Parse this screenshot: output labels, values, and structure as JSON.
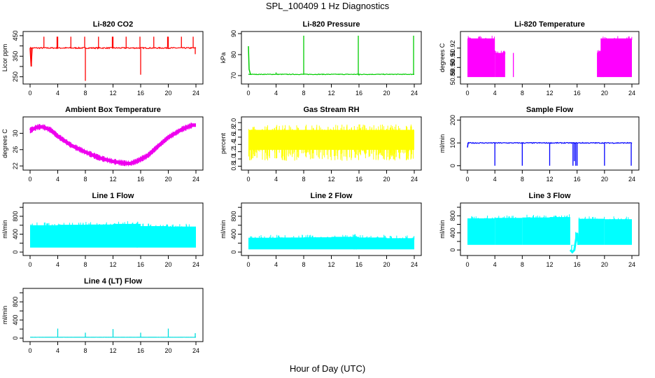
{
  "figure": {
    "title": "SPL_100409  1 Hz Diagnostics",
    "xlabel": "Hour of Day (UTC)"
  },
  "chart_data": [
    {
      "id": "co2",
      "type": "line",
      "title": "Li-820 CO2",
      "ylabel": "Licor ppm",
      "color": "#ff0000",
      "xlim": [
        0,
        24
      ],
      "x_ticks": [
        0,
        4,
        8,
        12,
        16,
        20,
        24
      ],
      "ylim": [
        225,
        460
      ],
      "y_ticks": [
        250,
        300,
        350,
        400,
        450
      ],
      "y_tick_labels": [
        "250",
        "",
        "350",
        "",
        "450"
      ],
      "series": [
        {
          "baseline": 390,
          "noise": 6,
          "points": [
            [
              0,
              390
            ],
            [
              0.15,
              300
            ],
            [
              0.3,
              390
            ],
            [
              24,
              390
            ]
          ],
          "spikes": [
            [
              0.2,
              300
            ],
            [
              2,
              445
            ],
            [
              3.9,
              445
            ],
            [
              4,
              445
            ],
            [
              5.9,
              445
            ],
            [
              7.9,
              445
            ],
            [
              8,
              230
            ],
            [
              9.9,
              445
            ],
            [
              11.9,
              445
            ],
            [
              12,
              445
            ],
            [
              13.9,
              445
            ],
            [
              15.9,
              445
            ],
            [
              16,
              260
            ],
            [
              17.9,
              445
            ],
            [
              19.9,
              445
            ],
            [
              20,
              445
            ],
            [
              21.9,
              445
            ],
            [
              23.6,
              445
            ],
            [
              23.9,
              360
            ]
          ]
        }
      ]
    },
    {
      "id": "pressure",
      "type": "line",
      "title": "Li-820 Pressure",
      "ylabel": "kPa",
      "color": "#00cc00",
      "xlim": [
        0,
        24
      ],
      "x_ticks": [
        0,
        4,
        8,
        12,
        16,
        20,
        24
      ],
      "ylim": [
        67,
        90
      ],
      "y_ticks": [
        70,
        80,
        90
      ],
      "y_tick_labels": [
        "70",
        "80",
        "90"
      ],
      "series": [
        {
          "baseline": 70.6,
          "noise": 0.3,
          "points": [
            [
              0,
              84
            ],
            [
              0.1,
              73
            ],
            [
              0.3,
              70.6
            ],
            [
              24,
              70.6
            ]
          ],
          "spikes": [
            [
              4,
              71.5
            ],
            [
              8,
              89
            ],
            [
              15.9,
              89
            ],
            [
              16,
              70
            ],
            [
              23.9,
              89
            ]
          ]
        }
      ]
    },
    {
      "id": "licor_temp",
      "type": "area",
      "title": "Li-820 Temperature",
      "ylabel": "degrees C",
      "color": "#ff00ff",
      "xlim": [
        0,
        24
      ],
      "x_ticks": [
        0,
        4,
        8,
        12,
        16,
        20,
        24
      ],
      "ylim": [
        50.885,
        50.935
      ],
      "y_ticks": [
        50.89,
        50.9,
        50.91,
        50.92
      ],
      "y_tick_labels": [
        "50.89",
        "50.90",
        "50.91",
        "50.92"
      ],
      "series": [
        {
          "bands": [
            [
              0,
              4,
              50.89,
              50.93
            ],
            [
              4,
              5.5,
              50.89,
              50.915
            ],
            [
              18.9,
              19.5,
              50.89,
              50.915
            ],
            [
              19.5,
              24,
              50.89,
              50.93
            ]
          ],
          "points": [
            [
              0,
              50.89
            ],
            [
              24,
              50.89
            ]
          ],
          "spikes": [
            [
              6.7,
              50.915
            ],
            [
              19.5,
              50.93
            ],
            [
              19.8,
              50.93
            ]
          ]
        }
      ]
    },
    {
      "id": "ambient_box",
      "type": "line",
      "title": "Ambient Box Temperature",
      "ylabel": "degrees C",
      "color": "#ee00ee",
      "xlim": [
        0,
        24
      ],
      "x_ticks": [
        0,
        4,
        8,
        12,
        16,
        20,
        24
      ],
      "ylim": [
        21.5,
        33.5
      ],
      "y_ticks": [
        22,
        26,
        30
      ],
      "y_tick_labels": [
        "22",
        "26",
        "30"
      ],
      "series": [
        {
          "thickness": 0.7,
          "points": [
            [
              0,
              30.7
            ],
            [
              1,
              31.5
            ],
            [
              1.8,
              31.6
            ],
            [
              3,
              30.8
            ],
            [
              4,
              29.3
            ],
            [
              6,
              27
            ],
            [
              8,
              25.4
            ],
            [
              10,
              24
            ],
            [
              12,
              23.1
            ],
            [
              13.5,
              22.7
            ],
            [
              14.5,
              22.6
            ],
            [
              15.5,
              23.2
            ],
            [
              17,
              24.5
            ],
            [
              18.5,
              26.8
            ],
            [
              20,
              29
            ],
            [
              22,
              31
            ],
            [
              23.5,
              32
            ],
            [
              24,
              32
            ]
          ]
        }
      ]
    },
    {
      "id": "gas_rh",
      "type": "area",
      "title": "Gas Stream RH",
      "ylabel": "percent",
      "color": "#ffff00",
      "xlim": [
        0,
        24
      ],
      "x_ticks": [
        0,
        4,
        8,
        12,
        16,
        20,
        24
      ],
      "ylim": [
        0.75,
        2.1
      ],
      "y_ticks": [
        0.8,
        1.0,
        1.2,
        1.4,
        1.6,
        1.8,
        2.0
      ],
      "y_tick_labels": [
        "0.8",
        "1.0",
        "1.2",
        "1.4",
        "1.6",
        "1.8",
        "2.0"
      ],
      "series": [
        {
          "bands": [
            [
              0,
              24,
              1.25,
              1.8
            ]
          ],
          "points": [
            [
              0,
              1.5
            ],
            [
              24,
              1.5
            ]
          ],
          "noise_band": [
            0.95,
            1.95
          ]
        }
      ]
    },
    {
      "id": "sample_flow",
      "type": "line",
      "title": "Sample Flow",
      "ylabel": "ml/min",
      "color": "#0000ff",
      "xlim": [
        0,
        24
      ],
      "x_ticks": [
        0,
        4,
        8,
        12,
        16,
        20,
        24
      ],
      "ylim": [
        -10,
        205
      ],
      "y_ticks": [
        0,
        100,
        200
      ],
      "y_tick_labels": [
        "0",
        "100",
        "200"
      ],
      "series": [
        {
          "baseline": 100,
          "noise": 4,
          "points": [
            [
              0,
              80
            ],
            [
              0.1,
              100
            ],
            [
              24,
              100
            ]
          ],
          "spikes": [
            [
              4,
              0
            ],
            [
              8,
              0
            ],
            [
              12,
              0
            ],
            [
              15.4,
              0
            ],
            [
              15.6,
              20
            ],
            [
              15.8,
              0
            ],
            [
              16,
              0
            ],
            [
              20,
              0
            ],
            [
              23.9,
              0
            ]
          ]
        }
      ]
    },
    {
      "id": "line1_flow",
      "type": "area",
      "title": "Line 1 Flow",
      "ylabel": "ml/min",
      "color": "#00ffff",
      "xlim": [
        0,
        24
      ],
      "x_ticks": [
        0,
        4,
        8,
        12,
        16,
        20,
        24
      ],
      "ylim": [
        -30,
        1050
      ],
      "y_ticks": [
        0,
        200,
        400,
        600,
        800,
        1000
      ],
      "y_tick_labels": [
        "0",
        "",
        "400",
        "",
        "800",
        ""
      ],
      "series": [
        {
          "bands": [
            [
              0,
              4,
              100,
              600
            ],
            [
              4,
              8,
              100,
              610
            ],
            [
              8,
              12,
              100,
              615
            ],
            [
              12,
              16,
              100,
              630
            ],
            [
              16,
              20,
              100,
              580
            ],
            [
              20,
              24,
              100,
              570
            ]
          ],
          "points": [
            [
              0,
              100
            ],
            [
              24,
              100
            ]
          ],
          "spikes": [
            [
              15.5,
              650
            ]
          ]
        }
      ]
    },
    {
      "id": "line2_flow",
      "type": "area",
      "title": "Line 2 Flow",
      "ylabel": "ml/min",
      "color": "#00ffff",
      "xlim": [
        0,
        24
      ],
      "x_ticks": [
        0,
        4,
        8,
        12,
        16,
        20,
        24
      ],
      "ylim": [
        -30,
        1050
      ],
      "y_ticks": [
        0,
        200,
        400,
        600,
        800,
        1000
      ],
      "y_tick_labels": [
        "0",
        "",
        "400",
        "",
        "800",
        ""
      ],
      "series": [
        {
          "bands": [
            [
              0,
              4,
              60,
              320
            ],
            [
              4,
              8,
              60,
              325
            ],
            [
              8,
              12,
              60,
              330
            ],
            [
              12,
              16,
              60,
              340
            ],
            [
              16,
              20,
              60,
              325
            ],
            [
              20,
              24,
              60,
              310
            ]
          ],
          "points": [
            [
              0,
              60
            ],
            [
              24,
              60
            ]
          ],
          "spikes": [
            [
              15.3,
              370
            ],
            [
              15.6,
              360
            ]
          ]
        }
      ]
    },
    {
      "id": "line3_flow",
      "type": "area",
      "title": "Line 3 Flow",
      "ylabel": "ml/min",
      "color": "#00ffff",
      "xlim": [
        0,
        24
      ],
      "x_ticks": [
        0,
        4,
        8,
        12,
        16,
        20,
        24
      ],
      "ylim": [
        -80,
        1050
      ],
      "y_ticks": [
        0,
        200,
        400,
        600,
        800,
        1000
      ],
      "y_tick_labels": [
        "0",
        "",
        "400",
        "",
        "800",
        ""
      ],
      "series": [
        {
          "bands": [
            [
              0,
              4,
              120,
              740
            ],
            [
              4,
              8,
              120,
              750
            ],
            [
              8,
              12,
              120,
              760
            ],
            [
              12,
              15,
              120,
              770
            ],
            [
              16.2,
              20,
              120,
              730
            ],
            [
              20,
              24,
              120,
              720
            ]
          ],
          "points": [
            [
              15,
              0
            ],
            [
              15.3,
              -50
            ],
            [
              15.6,
              0
            ],
            [
              16,
              400
            ],
            [
              16.2,
              120
            ]
          ],
          "spikes": [
            [
              15.2,
              -60
            ],
            [
              15.4,
              100
            ],
            [
              15.8,
              420
            ],
            [
              16.1,
              380
            ]
          ]
        }
      ]
    },
    {
      "id": "line4_flow",
      "type": "line",
      "title": "Line 4 (LT) Flow",
      "ylabel": "ml/min",
      "color": "#00dddd",
      "xlim": [
        0,
        24
      ],
      "x_ticks": [
        0,
        4,
        8,
        12,
        16,
        20,
        24
      ],
      "ylim": [
        -30,
        1050
      ],
      "y_ticks": [
        0,
        200,
        400,
        600,
        800,
        1000
      ],
      "y_tick_labels": [
        "0",
        "",
        "400",
        "",
        "800",
        ""
      ],
      "series": [
        {
          "baseline": 20,
          "noise": 2,
          "points": [
            [
              0,
              20
            ],
            [
              24,
              20
            ]
          ],
          "spikes": [
            [
              4,
              210
            ],
            [
              8,
              120
            ],
            [
              12,
              200
            ],
            [
              16,
              120
            ],
            [
              20,
              210
            ],
            [
              23.9,
              110
            ]
          ]
        }
      ]
    }
  ]
}
